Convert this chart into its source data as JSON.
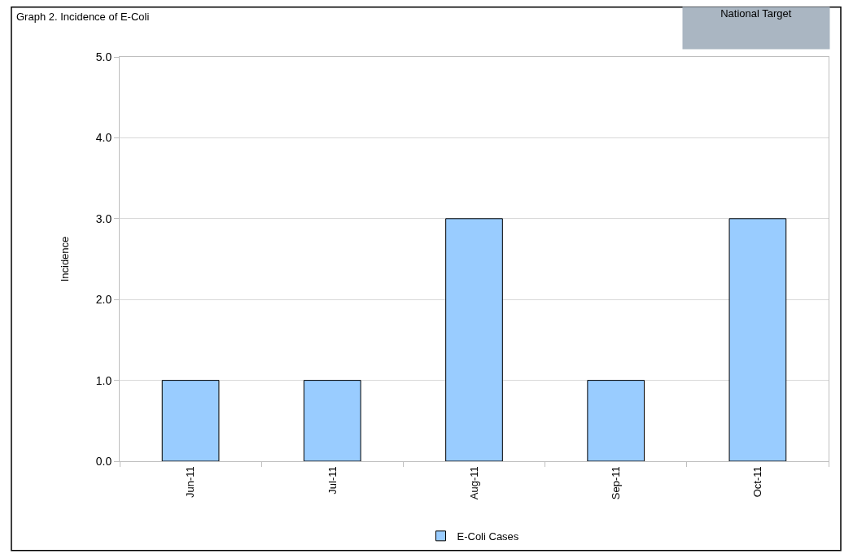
{
  "chart_data": {
    "type": "bar",
    "title": "Graph 2. Incidence of E-Coli",
    "ylabel": "Incidence",
    "categories": [
      "Jun-11",
      "Jul-11",
      "Aug-11",
      "Sep-11",
      "Oct-11"
    ],
    "series": [
      {
        "name": "E-Coli Cases",
        "color": "#99ccff",
        "values": [
          1,
          1,
          3,
          1,
          3
        ]
      }
    ],
    "ylim": [
      0,
      5
    ],
    "yticks": [
      {
        "value": 0,
        "label": "0.0"
      },
      {
        "value": 1,
        "label": "1.0"
      },
      {
        "value": 2,
        "label": "2.0"
      },
      {
        "value": 3,
        "label": "3.0"
      },
      {
        "value": 4,
        "label": "4.0"
      },
      {
        "value": 5,
        "label": "5.0"
      }
    ],
    "grid": "y",
    "legend": "bottom",
    "annotations": [
      "National Target"
    ]
  }
}
